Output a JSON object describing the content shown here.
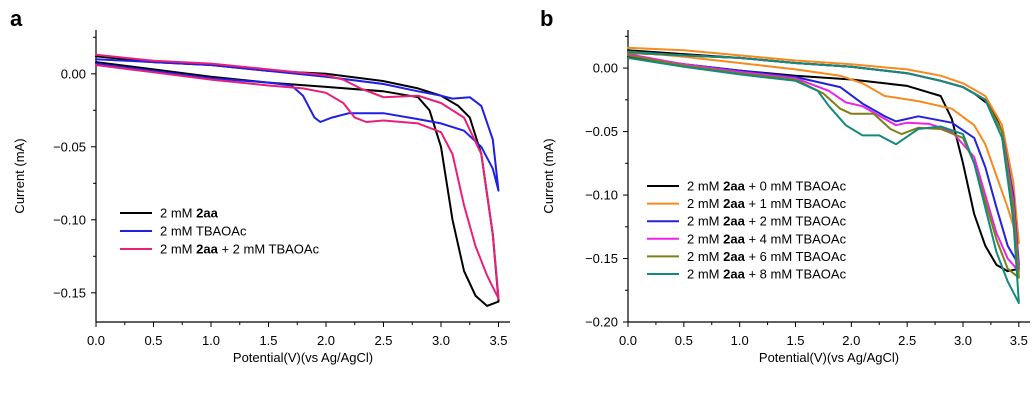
{
  "chart_data": [
    {
      "panel": "a",
      "type": "line",
      "xlabel": "Potential(V)(vs Ag/AgCl)",
      "ylabel": "Current (mA)",
      "xlim": [
        0,
        3.6
      ],
      "ylim": [
        -0.17,
        0.03
      ],
      "xticks": [
        "0.0",
        "0.5",
        "1.0",
        "1.5",
        "2.0",
        "2.5",
        "3.0",
        "3.5"
      ],
      "xtick_values": [
        0,
        0.5,
        1.0,
        1.5,
        2.0,
        2.5,
        3.0,
        3.5
      ],
      "yticks": [
        "0.00",
        "−0.05",
        "−0.10",
        "−0.15"
      ],
      "ytick_values": [
        0,
        -0.05,
        -0.1,
        -0.15
      ],
      "legend_position": "center-left",
      "series": [
        {
          "legend": [
            "2 mM ",
            "2aa",
            ""
          ],
          "color": "#000000",
          "x": [
            0.0,
            0.5,
            1.0,
            1.5,
            2.0,
            2.5,
            2.8,
            2.9,
            3.0,
            3.1,
            3.2,
            3.3,
            3.4,
            3.5,
            3.5,
            3.45,
            3.35,
            3.25,
            3.15,
            3.0,
            2.8,
            2.5,
            2.0,
            1.5,
            1.0,
            0.5,
            0.0
          ],
          "y": [
            0.008,
            0.003,
            -0.002,
            -0.006,
            -0.009,
            -0.012,
            -0.016,
            -0.025,
            -0.05,
            -0.1,
            -0.135,
            -0.152,
            -0.159,
            -0.156,
            -0.155,
            -0.11,
            -0.055,
            -0.03,
            -0.022,
            -0.015,
            -0.01,
            -0.005,
            0.0,
            0.002,
            0.006,
            0.008,
            0.012
          ]
        },
        {
          "legend": [
            "2 mM TBAOAc",
            "",
            ""
          ],
          "color": "#1f1fe6",
          "x": [
            0.0,
            0.5,
            1.0,
            1.5,
            1.7,
            1.8,
            1.9,
            1.95,
            2.05,
            2.2,
            2.5,
            2.8,
            3.0,
            3.2,
            3.35,
            3.45,
            3.5,
            3.5,
            3.45,
            3.35,
            3.25,
            3.1,
            3.0,
            2.8,
            2.5,
            2.0,
            1.5,
            1.0,
            0.5,
            0.0
          ],
          "y": [
            0.007,
            0.002,
            -0.003,
            -0.006,
            -0.008,
            -0.015,
            -0.03,
            -0.033,
            -0.03,
            -0.027,
            -0.027,
            -0.031,
            -0.034,
            -0.039,
            -0.05,
            -0.065,
            -0.08,
            -0.08,
            -0.045,
            -0.022,
            -0.016,
            -0.017,
            -0.015,
            -0.012,
            -0.007,
            -0.002,
            0.002,
            0.006,
            0.008,
            0.01
          ]
        },
        {
          "legend": [
            "2 mM ",
            "2aa",
            " + 2 mM TBAOAc"
          ],
          "color": "#e8207a",
          "x": [
            0.0,
            0.5,
            1.0,
            1.5,
            1.8,
            2.0,
            2.15,
            2.25,
            2.35,
            2.5,
            2.8,
            3.0,
            3.1,
            3.2,
            3.3,
            3.4,
            3.5,
            3.5,
            3.45,
            3.35,
            3.2,
            3.0,
            2.8,
            2.5,
            2.3,
            2.15,
            2.0,
            1.5,
            1.0,
            0.5,
            0.0
          ],
          "y": [
            0.006,
            0.001,
            -0.004,
            -0.008,
            -0.01,
            -0.013,
            -0.02,
            -0.03,
            -0.033,
            -0.032,
            -0.034,
            -0.04,
            -0.055,
            -0.09,
            -0.118,
            -0.138,
            -0.154,
            -0.153,
            -0.11,
            -0.055,
            -0.03,
            -0.02,
            -0.015,
            -0.016,
            -0.01,
            -0.004,
            -0.001,
            0.003,
            0.007,
            0.009,
            0.013
          ]
        }
      ]
    },
    {
      "panel": "b",
      "type": "line",
      "xlabel": "Potential(V)(vs Ag/AgCl)",
      "ylabel": "Current (mA)",
      "xlim": [
        0,
        3.6
      ],
      "ylim": [
        -0.2,
        0.03
      ],
      "xticks": [
        "0.0",
        "0.5",
        "1.0",
        "1.5",
        "2.0",
        "2.5",
        "3.0",
        "3.5"
      ],
      "xtick_values": [
        0,
        0.5,
        1.0,
        1.5,
        2.0,
        2.5,
        3.0,
        3.5
      ],
      "yticks": [
        "0.00",
        "−0.05",
        "−0.10",
        "−0.15",
        "−0.20"
      ],
      "ytick_values": [
        0,
        -0.05,
        -0.1,
        -0.15,
        -0.2
      ],
      "legend_position": "lower-left",
      "series": [
        {
          "legend": [
            "2 mM ",
            "2aa",
            " + 0 mM TBAOAc"
          ],
          "color": "#000000",
          "x": [
            0.0,
            0.5,
            1.0,
            1.5,
            2.0,
            2.5,
            2.8,
            2.9,
            3.0,
            3.1,
            3.2,
            3.3,
            3.4,
            3.5,
            3.5,
            3.45,
            3.35,
            3.25,
            3.1,
            3.0,
            2.8,
            2.5,
            2.0,
            1.5,
            1.0,
            0.5,
            0.0
          ],
          "y": [
            0.009,
            0.003,
            -0.002,
            -0.006,
            -0.009,
            -0.014,
            -0.022,
            -0.04,
            -0.075,
            -0.115,
            -0.14,
            -0.155,
            -0.16,
            -0.158,
            -0.157,
            -0.105,
            -0.05,
            -0.03,
            -0.02,
            -0.015,
            -0.01,
            -0.004,
            0.001,
            0.004,
            0.008,
            0.011,
            0.014
          ]
        },
        {
          "legend": [
            "2 mM ",
            "2aa",
            " + 1 mM TBAOAc"
          ],
          "color": "#f58a1f",
          "x": [
            0.0,
            0.5,
            1.0,
            1.5,
            1.9,
            2.1,
            2.3,
            2.6,
            2.9,
            3.1,
            3.2,
            3.3,
            3.4,
            3.5,
            3.5,
            3.45,
            3.35,
            3.2,
            3.0,
            2.8,
            2.5,
            2.0,
            1.5,
            1.0,
            0.5,
            0.0
          ],
          "y": [
            0.013,
            0.009,
            0.004,
            -0.001,
            -0.006,
            -0.012,
            -0.022,
            -0.026,
            -0.032,
            -0.045,
            -0.06,
            -0.085,
            -0.11,
            -0.138,
            -0.137,
            -0.09,
            -0.045,
            -0.022,
            -0.012,
            -0.006,
            -0.001,
            0.003,
            0.006,
            0.01,
            0.014,
            0.016
          ]
        },
        {
          "legend": [
            "2 mM ",
            "2aa",
            " + 2 mM TBAOAc"
          ],
          "color": "#2222dd",
          "x": [
            0.0,
            0.5,
            1.0,
            1.5,
            1.9,
            2.1,
            2.3,
            2.4,
            2.6,
            2.9,
            3.1,
            3.2,
            3.3,
            3.4,
            3.5,
            3.5,
            3.45,
            3.35,
            3.2,
            3.0,
            2.8,
            2.5,
            2.0,
            1.5,
            1.0,
            0.5,
            0.0
          ],
          "y": [
            0.01,
            0.003,
            -0.002,
            -0.007,
            -0.015,
            -0.028,
            -0.038,
            -0.042,
            -0.038,
            -0.043,
            -0.055,
            -0.078,
            -0.11,
            -0.14,
            -0.155,
            -0.154,
            -0.1,
            -0.05,
            -0.025,
            -0.015,
            -0.01,
            -0.004,
            0.001,
            0.004,
            0.008,
            0.01,
            0.012
          ]
        },
        {
          "legend": [
            "2 mM ",
            "2aa",
            " + 4 mM TBAOAc"
          ],
          "color": "#ea22ea",
          "x": [
            0.0,
            0.5,
            1.0,
            1.5,
            1.8,
            1.95,
            2.1,
            2.3,
            2.4,
            2.5,
            2.7,
            2.9,
            3.1,
            3.2,
            3.3,
            3.4,
            3.5,
            3.5,
            3.45,
            3.35,
            3.2,
            3.0,
            2.8,
            2.5,
            2.0,
            1.5,
            1.0,
            0.5,
            0.0
          ],
          "y": [
            0.011,
            0.003,
            -0.003,
            -0.008,
            -0.018,
            -0.027,
            -0.03,
            -0.04,
            -0.045,
            -0.043,
            -0.044,
            -0.05,
            -0.07,
            -0.1,
            -0.13,
            -0.15,
            -0.16,
            -0.159,
            -0.105,
            -0.05,
            -0.025,
            -0.015,
            -0.01,
            -0.004,
            0.001,
            0.004,
            0.008,
            0.01,
            0.012
          ]
        },
        {
          "legend": [
            "2 mM ",
            "2aa",
            " + 6 mM TBAOAc"
          ],
          "color": "#7f7f14",
          "x": [
            0.0,
            0.5,
            1.0,
            1.5,
            1.75,
            1.9,
            2.0,
            2.2,
            2.35,
            2.45,
            2.6,
            2.8,
            3.0,
            3.1,
            3.2,
            3.3,
            3.4,
            3.5,
            3.5,
            3.45,
            3.35,
            3.2,
            3.0,
            2.8,
            2.5,
            2.0,
            1.5,
            1.0,
            0.5,
            0.0
          ],
          "y": [
            0.01,
            0.002,
            -0.004,
            -0.009,
            -0.02,
            -0.032,
            -0.036,
            -0.036,
            -0.048,
            -0.052,
            -0.047,
            -0.048,
            -0.055,
            -0.075,
            -0.105,
            -0.135,
            -0.158,
            -0.165,
            -0.164,
            -0.11,
            -0.05,
            -0.025,
            -0.015,
            -0.01,
            -0.004,
            0.001,
            0.004,
            0.008,
            0.01,
            0.012
          ]
        },
        {
          "legend": [
            "2 mM ",
            "2aa",
            " + 8 mM TBAOAc"
          ],
          "color": "#138a7c",
          "x": [
            0.0,
            0.5,
            1.0,
            1.5,
            1.7,
            1.8,
            1.95,
            2.1,
            2.25,
            2.4,
            2.5,
            2.6,
            2.8,
            3.0,
            3.1,
            3.2,
            3.3,
            3.4,
            3.5,
            3.5,
            3.45,
            3.35,
            3.2,
            3.0,
            2.8,
            2.5,
            2.0,
            1.5,
            1.0,
            0.5,
            0.0
          ],
          "y": [
            0.008,
            0.001,
            -0.005,
            -0.01,
            -0.018,
            -0.03,
            -0.045,
            -0.053,
            -0.053,
            -0.06,
            -0.054,
            -0.048,
            -0.046,
            -0.052,
            -0.075,
            -0.11,
            -0.145,
            -0.168,
            -0.185,
            -0.184,
            -0.12,
            -0.055,
            -0.025,
            -0.015,
            -0.01,
            -0.004,
            0.001,
            0.004,
            0.008,
            0.01,
            0.013
          ]
        }
      ]
    }
  ]
}
